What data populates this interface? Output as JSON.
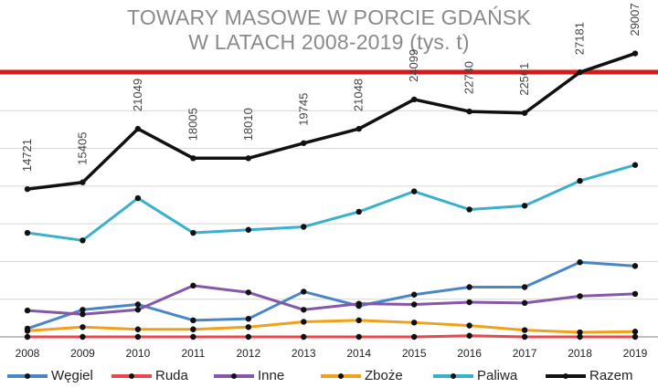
{
  "title_line1": "TOWARY MASOWE W PORCIE GDAŃSK",
  "title_line2": "W LATACH 2008-2019 (tys. t)",
  "accent_color": "#d7191c",
  "chart_data": {
    "type": "line",
    "title": "TOWARY MASOWE W PORCIE GDAŃSK W LATACH 2008-2019 (tys. t)",
    "xlabel": "",
    "ylabel": "",
    "x": [
      "2008",
      "2009",
      "2010",
      "2011",
      "2012",
      "2013",
      "2014",
      "2015",
      "2016",
      "2017",
      "2018",
      "2019"
    ],
    "ylim": [
      0,
      35000
    ],
    "grid": true,
    "legend_position": "bottom",
    "series": [
      {
        "name": "Węgiel",
        "color": "#4a86c5",
        "values": [
          1100,
          3600,
          4300,
          2200,
          2400,
          6000,
          4100,
          5600,
          6600,
          6600,
          9900,
          9400
        ]
      },
      {
        "name": "Ruda",
        "color": "#e8484f",
        "values": [
          0,
          0,
          0,
          0,
          0,
          0,
          0,
          0,
          150,
          0,
          0,
          0
        ]
      },
      {
        "name": "Inne",
        "color": "#8457a8",
        "values": [
          3500,
          3000,
          3600,
          6800,
          5900,
          3600,
          4400,
          4300,
          4600,
          4500,
          5400,
          5700
        ]
      },
      {
        "name": "Zboże",
        "color": "#f0a11c",
        "values": [
          800,
          1300,
          1000,
          1000,
          1300,
          2000,
          2200,
          1900,
          1500,
          900,
          600,
          700
        ]
      },
      {
        "name": "Paliwa",
        "color": "#3ab0cb",
        "values": [
          13800,
          12800,
          18400,
          13800,
          14200,
          14600,
          16600,
          19300,
          16900,
          17400,
          20700,
          22800
        ]
      },
      {
        "name": "Razem",
        "color": "#111111",
        "values": [
          19600,
          20500,
          27600,
          23700,
          23700,
          25700,
          27600,
          31500,
          29900,
          29700,
          35100,
          37600
        ]
      }
    ],
    "data_labels": [
      "14721",
      "15405",
      "21049",
      "18005",
      "18010",
      "19745",
      "21048",
      "24099",
      "22740",
      "22561",
      "27181",
      "29007"
    ]
  }
}
